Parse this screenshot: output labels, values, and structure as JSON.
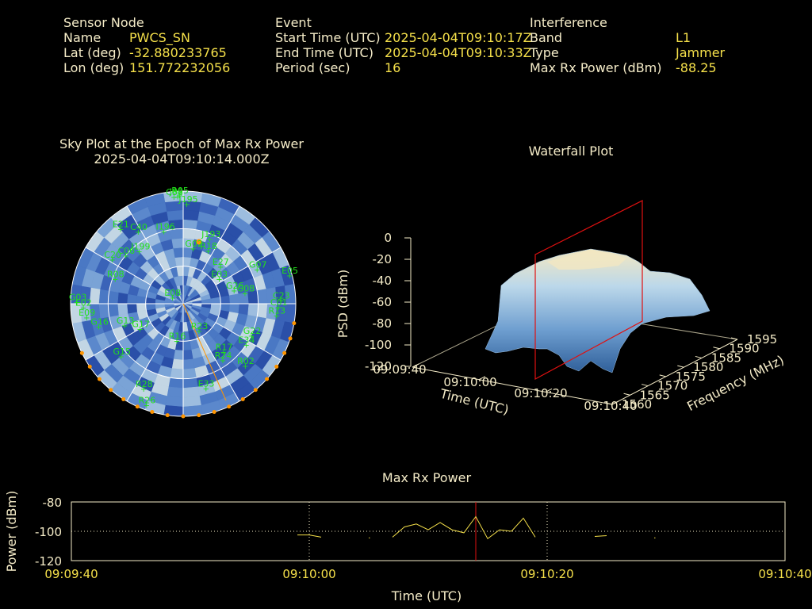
{
  "header": {
    "sensor": {
      "heading": "Sensor Node",
      "name_label": "Name",
      "name_value": "PWCS_SN",
      "lat_label": "Lat (deg)",
      "lat_value": "-32.880233765",
      "lon_label": "Lon (deg)",
      "lon_value": "151.772232056"
    },
    "event": {
      "heading": "Event",
      "start_label": "Start Time (UTC)",
      "start_value": "2025-04-04T09:10:17Z",
      "end_label": "End Time (UTC)",
      "end_value": "2025-04-04T09:10:33Z",
      "period_label": "Period (sec)",
      "period_value": "16"
    },
    "interference": {
      "heading": "Interference",
      "band_label": "Band",
      "band_value": "L1",
      "type_label": "Type",
      "type_value": "Jammer",
      "maxrx_label": "Max Rx Power (dBm)",
      "maxrx_value": "-88.25"
    }
  },
  "colors": {
    "label": "#f5ecc8",
    "value": "#f5e04a",
    "satellite": "#22e01a",
    "jammer_marker": "#ff9500",
    "event_marker": "#e01010",
    "grid": "#ffffff"
  },
  "chart_data": [
    {
      "type": "scatter",
      "title": "Sky Plot at the Epoch of Max Rx Power",
      "subtitle": "2025-04-04T09:10:14.000Z",
      "projection": "polar",
      "elevation_rings_deg": [
        0,
        30,
        60,
        90
      ],
      "satellites": [
        {
          "id": "C38",
          "az": 355,
          "el": 4
        },
        {
          "id": "R05",
          "az": 358,
          "el": 3
        },
        {
          "id": "J02",
          "az": 357,
          "el": 4
        },
        {
          "id": "J195",
          "az": 2,
          "el": 10
        },
        {
          "id": "J193",
          "az": 22,
          "el": 34
        },
        {
          "id": "E21",
          "az": 320,
          "el": 12
        },
        {
          "id": "I196",
          "az": 345,
          "el": 30
        },
        {
          "id": "C40",
          "az": 328,
          "el": 22
        },
        {
          "id": "C06",
          "az": 310,
          "el": 30
        },
        {
          "id": "R18",
          "az": 25,
          "el": 43
        },
        {
          "id": "G02",
          "az": 10,
          "el": 45
        },
        {
          "id": "I199",
          "az": 320,
          "el": 35
        },
        {
          "id": "C20",
          "az": 302,
          "el": 23
        },
        {
          "id": "R08",
          "az": 290,
          "el": 32
        },
        {
          "id": "E05",
          "az": 75,
          "el": 2
        },
        {
          "id": "G07",
          "az": 65,
          "el": 25
        },
        {
          "id": "E27",
          "az": 45,
          "el": 48
        },
        {
          "id": "E03",
          "az": 55,
          "el": 55
        },
        {
          "id": "E08",
          "az": 300,
          "el": 80
        },
        {
          "id": "G26",
          "az": 75,
          "el": 48
        },
        {
          "id": "G08",
          "az": 80,
          "el": 40
        },
        {
          "id": "C23",
          "az": 88,
          "el": 12
        },
        {
          "id": "C01",
          "az": 92,
          "el": 14
        },
        {
          "id": "R13",
          "az": 97,
          "el": 15
        },
        {
          "id": "G03",
          "az": 271,
          "el": 5
        },
        {
          "id": "E02",
          "az": 268,
          "el": 10
        },
        {
          "id": "E09",
          "az": 262,
          "el": 12
        },
        {
          "id": "G17",
          "az": 240,
          "el": 50
        },
        {
          "id": "G13",
          "az": 250,
          "el": 40
        },
        {
          "id": "G16",
          "az": 255,
          "el": 20
        },
        {
          "id": "R16",
          "az": 190,
          "el": 60
        },
        {
          "id": "R23",
          "az": 150,
          "el": 65
        },
        {
          "id": "G15",
          "az": 230,
          "el": 25
        },
        {
          "id": "E34",
          "az": 123,
          "el": 30
        },
        {
          "id": "G22",
          "az": 115,
          "el": 30
        },
        {
          "id": "R17",
          "az": 140,
          "el": 40
        },
        {
          "id": "R02",
          "az": 135,
          "el": 20
        },
        {
          "id": "R24",
          "az": 145,
          "el": 35
        },
        {
          "id": "E33",
          "az": 165,
          "el": 20
        },
        {
          "id": "R28",
          "az": 205,
          "el": 15
        },
        {
          "id": "R26",
          "az": 200,
          "el": 4
        }
      ]
    },
    {
      "type": "area",
      "title": "Waterfall Plot",
      "xlabel": "Time (UTC)",
      "ylabel": "Frequency (MHz)",
      "zlabel": "PSD (dBm)",
      "x_ticks": [
        "09:09:40",
        "09:10:00",
        "09:10:20",
        "09:10:40"
      ],
      "y_ticks": [
        "1560",
        "1565",
        "1570",
        "1575",
        "1580",
        "1585",
        "1590",
        "1595"
      ],
      "z_ticks": [
        "0",
        "-20",
        "-40",
        "-60",
        "-80",
        "-100",
        "-120"
      ],
      "zlim": [
        -120,
        0
      ]
    },
    {
      "type": "line",
      "title": "Max Rx Power",
      "xlabel": "Time (UTC)",
      "ylabel": "Power (dBm)",
      "ylim": [
        -120,
        -80
      ],
      "y_ticks": [
        -80,
        -100,
        -120
      ],
      "x_ticks": [
        "09:09:40",
        "09:10:00",
        "09:10:20",
        "09:10:40"
      ],
      "x_range_sec": [
        0,
        60
      ],
      "grid": true,
      "event_marker_sec": 34,
      "series": [
        {
          "values": [
            [
              19,
              -102.5
            ],
            [
              20,
              -102.5
            ],
            [
              21,
              -104
            ]
          ]
        },
        {
          "values": [
            [
              25,
              -104.5
            ],
            [
              25.1,
              -104.5
            ]
          ]
        },
        {
          "values": [
            [
              27,
              -104
            ],
            [
              28,
              -97
            ],
            [
              29,
              -95
            ],
            [
              30,
              -99
            ],
            [
              31,
              -94
            ],
            [
              32,
              -99
            ],
            [
              33,
              -101
            ],
            [
              34,
              -90
            ],
            [
              35,
              -105
            ],
            [
              36,
              -99
            ],
            [
              37,
              -100
            ],
            [
              38,
              -91
            ],
            [
              39,
              -104
            ]
          ]
        },
        {
          "values": [
            [
              44,
              -103.5
            ],
            [
              45,
              -103
            ]
          ]
        },
        {
          "values": [
            [
              49,
              -104.5
            ],
            [
              49.1,
              -104.5
            ]
          ]
        }
      ]
    }
  ]
}
